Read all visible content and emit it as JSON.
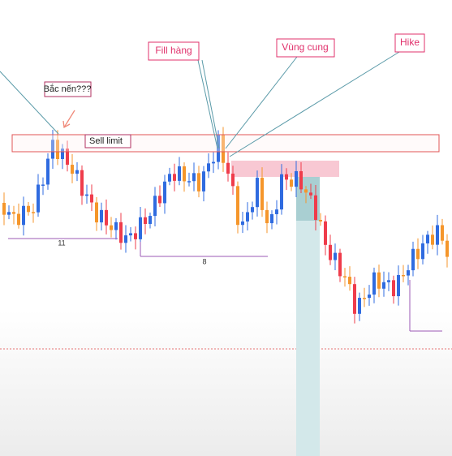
{
  "annotations": {
    "fill": "Fill hàng",
    "zone": "Vùng cung",
    "hike": "Hike",
    "wick": "Bắc nến???",
    "sell_limit": "Sell limit",
    "count_left": "11",
    "count_mid": "8"
  }
}
